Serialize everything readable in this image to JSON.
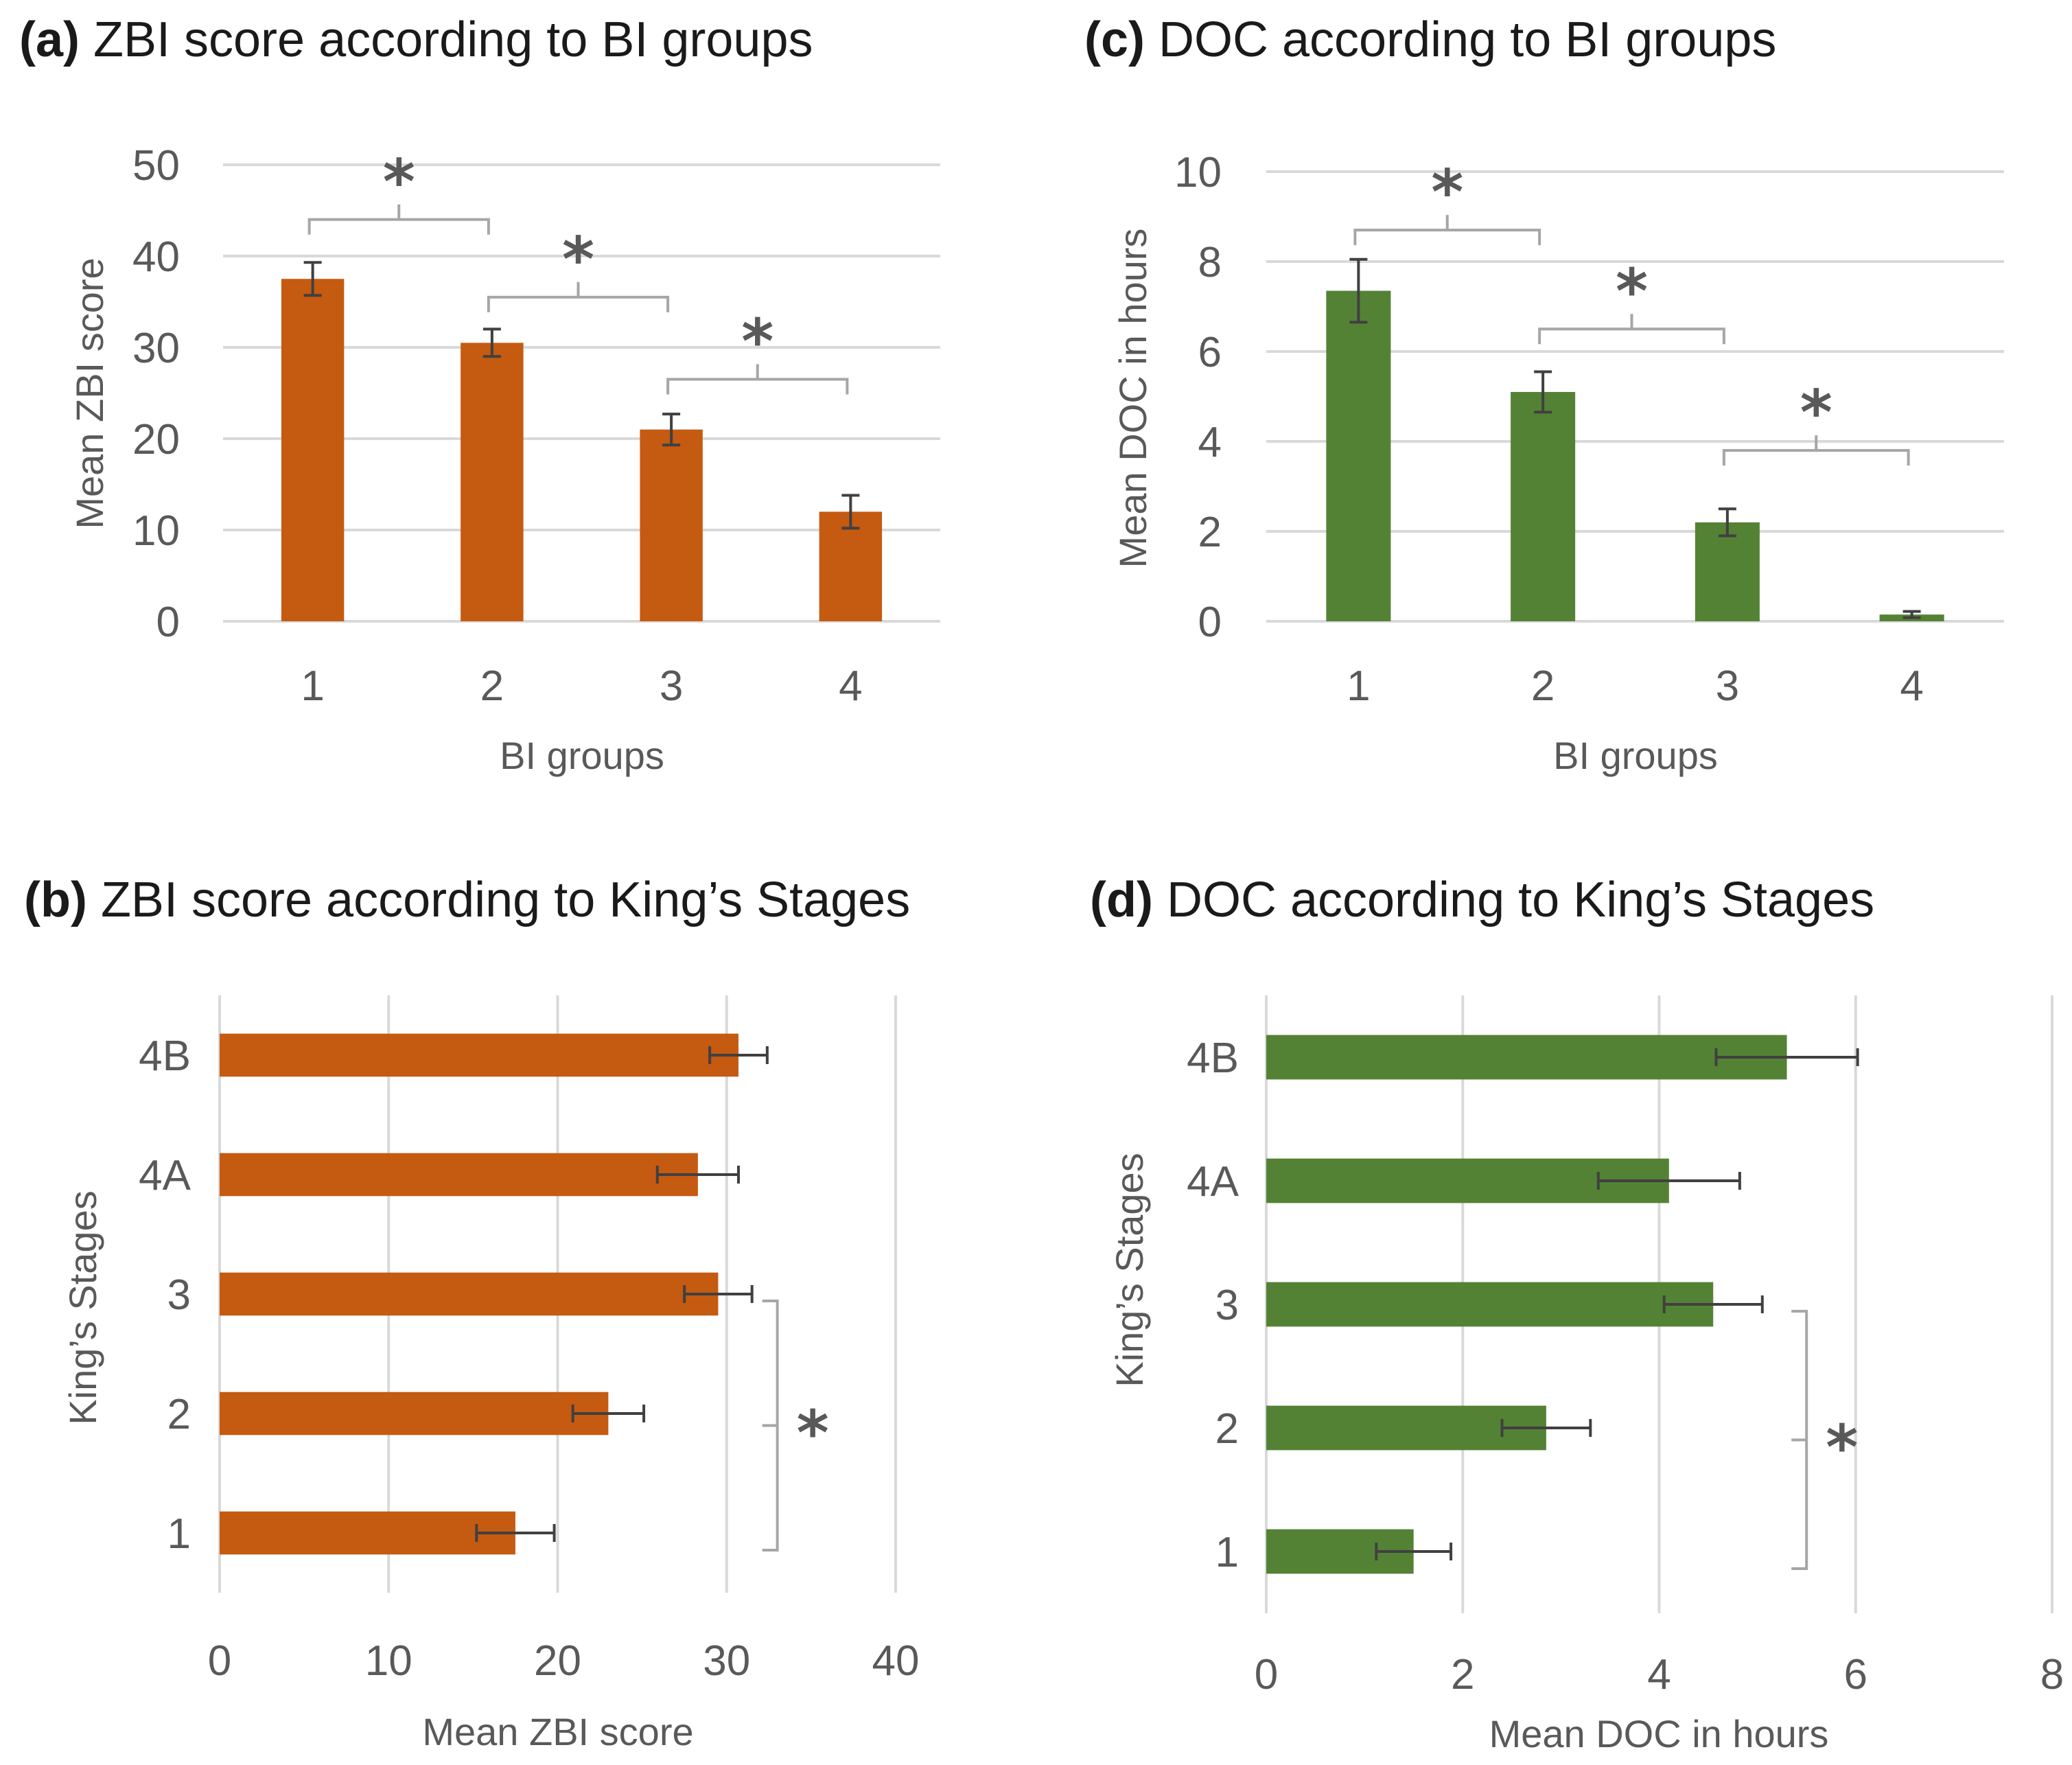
{
  "chart_data": [
    {
      "id": "a",
      "type": "bar",
      "orientation": "vertical",
      "tag": "(a)",
      "title": "ZBI score according to BI groups",
      "xlabel": "BI groups",
      "ylabel": "Mean ZBI score",
      "categories": [
        "1",
        "2",
        "3",
        "4"
      ],
      "values": [
        37.5,
        30.5,
        21,
        12
      ],
      "errors": [
        1.8,
        1.5,
        1.7,
        1.8
      ],
      "ylim": [
        0,
        50
      ],
      "yticks": [
        0,
        10,
        20,
        30,
        40,
        50
      ],
      "color": "#c55a11",
      "significance": [
        {
          "from": "1",
          "to": "2",
          "label": "*",
          "level": 44
        },
        {
          "from": "2",
          "to": "3",
          "label": "*",
          "level": 35.5
        },
        {
          "from": "3",
          "to": "4",
          "label": "*",
          "level": 26.5
        }
      ]
    },
    {
      "id": "b",
      "type": "bar",
      "orientation": "horizontal",
      "tag": "(b)",
      "title": "ZBI score according to King’s Stages",
      "xlabel": "Mean ZBI score",
      "ylabel": "King’s Stages",
      "categories": [
        "4B",
        "4A",
        "3",
        "2",
        "1"
      ],
      "values": [
        30.7,
        28.3,
        29.5,
        23,
        17.5
      ],
      "errors": [
        1.7,
        2.4,
        2.0,
        2.1,
        2.3
      ],
      "xlim": [
        0,
        40
      ],
      "xticks": [
        0,
        10,
        20,
        30,
        40
      ],
      "color": "#c55a11",
      "significance": [
        {
          "from": "3",
          "to": "1",
          "label": "*",
          "level": 33
        }
      ]
    },
    {
      "id": "c",
      "type": "bar",
      "orientation": "vertical",
      "tag": "(c)",
      "title": "DOC according to BI groups",
      "xlabel": "BI groups",
      "ylabel": "Mean DOC in hours",
      "categories": [
        "1",
        "2",
        "3",
        "4"
      ],
      "values": [
        7.35,
        5.1,
        2.2,
        0.15
      ],
      "errors": [
        0.7,
        0.45,
        0.3,
        0.07
      ],
      "ylim": [
        0,
        10
      ],
      "yticks": [
        0,
        2,
        4,
        6,
        8,
        10
      ],
      "color": "#548235",
      "significance": [
        {
          "from": "1",
          "to": "2",
          "label": "*",
          "level": 8.7
        },
        {
          "from": "2",
          "to": "3",
          "label": "*",
          "level": 6.5
        },
        {
          "from": "3",
          "to": "4",
          "label": "*",
          "level": 3.8
        }
      ]
    },
    {
      "id": "d",
      "type": "bar",
      "orientation": "horizontal",
      "tag": "(d)",
      "title": "DOC according to King’s Stages",
      "xlabel": "Mean DOC in hours",
      "ylabel": "King’s Stages",
      "categories": [
        "4B",
        "4A",
        "3",
        "2",
        "1"
      ],
      "values": [
        5.3,
        4.1,
        4.55,
        2.85,
        1.5
      ],
      "errors": [
        0.72,
        0.72,
        0.5,
        0.45,
        0.38
      ],
      "xlim": [
        0,
        8
      ],
      "xticks": [
        0,
        2,
        4,
        6,
        8
      ],
      "color": "#548235",
      "significance": [
        {
          "from": "3",
          "to": "1",
          "label": "*",
          "level": 5.5
        }
      ]
    }
  ]
}
